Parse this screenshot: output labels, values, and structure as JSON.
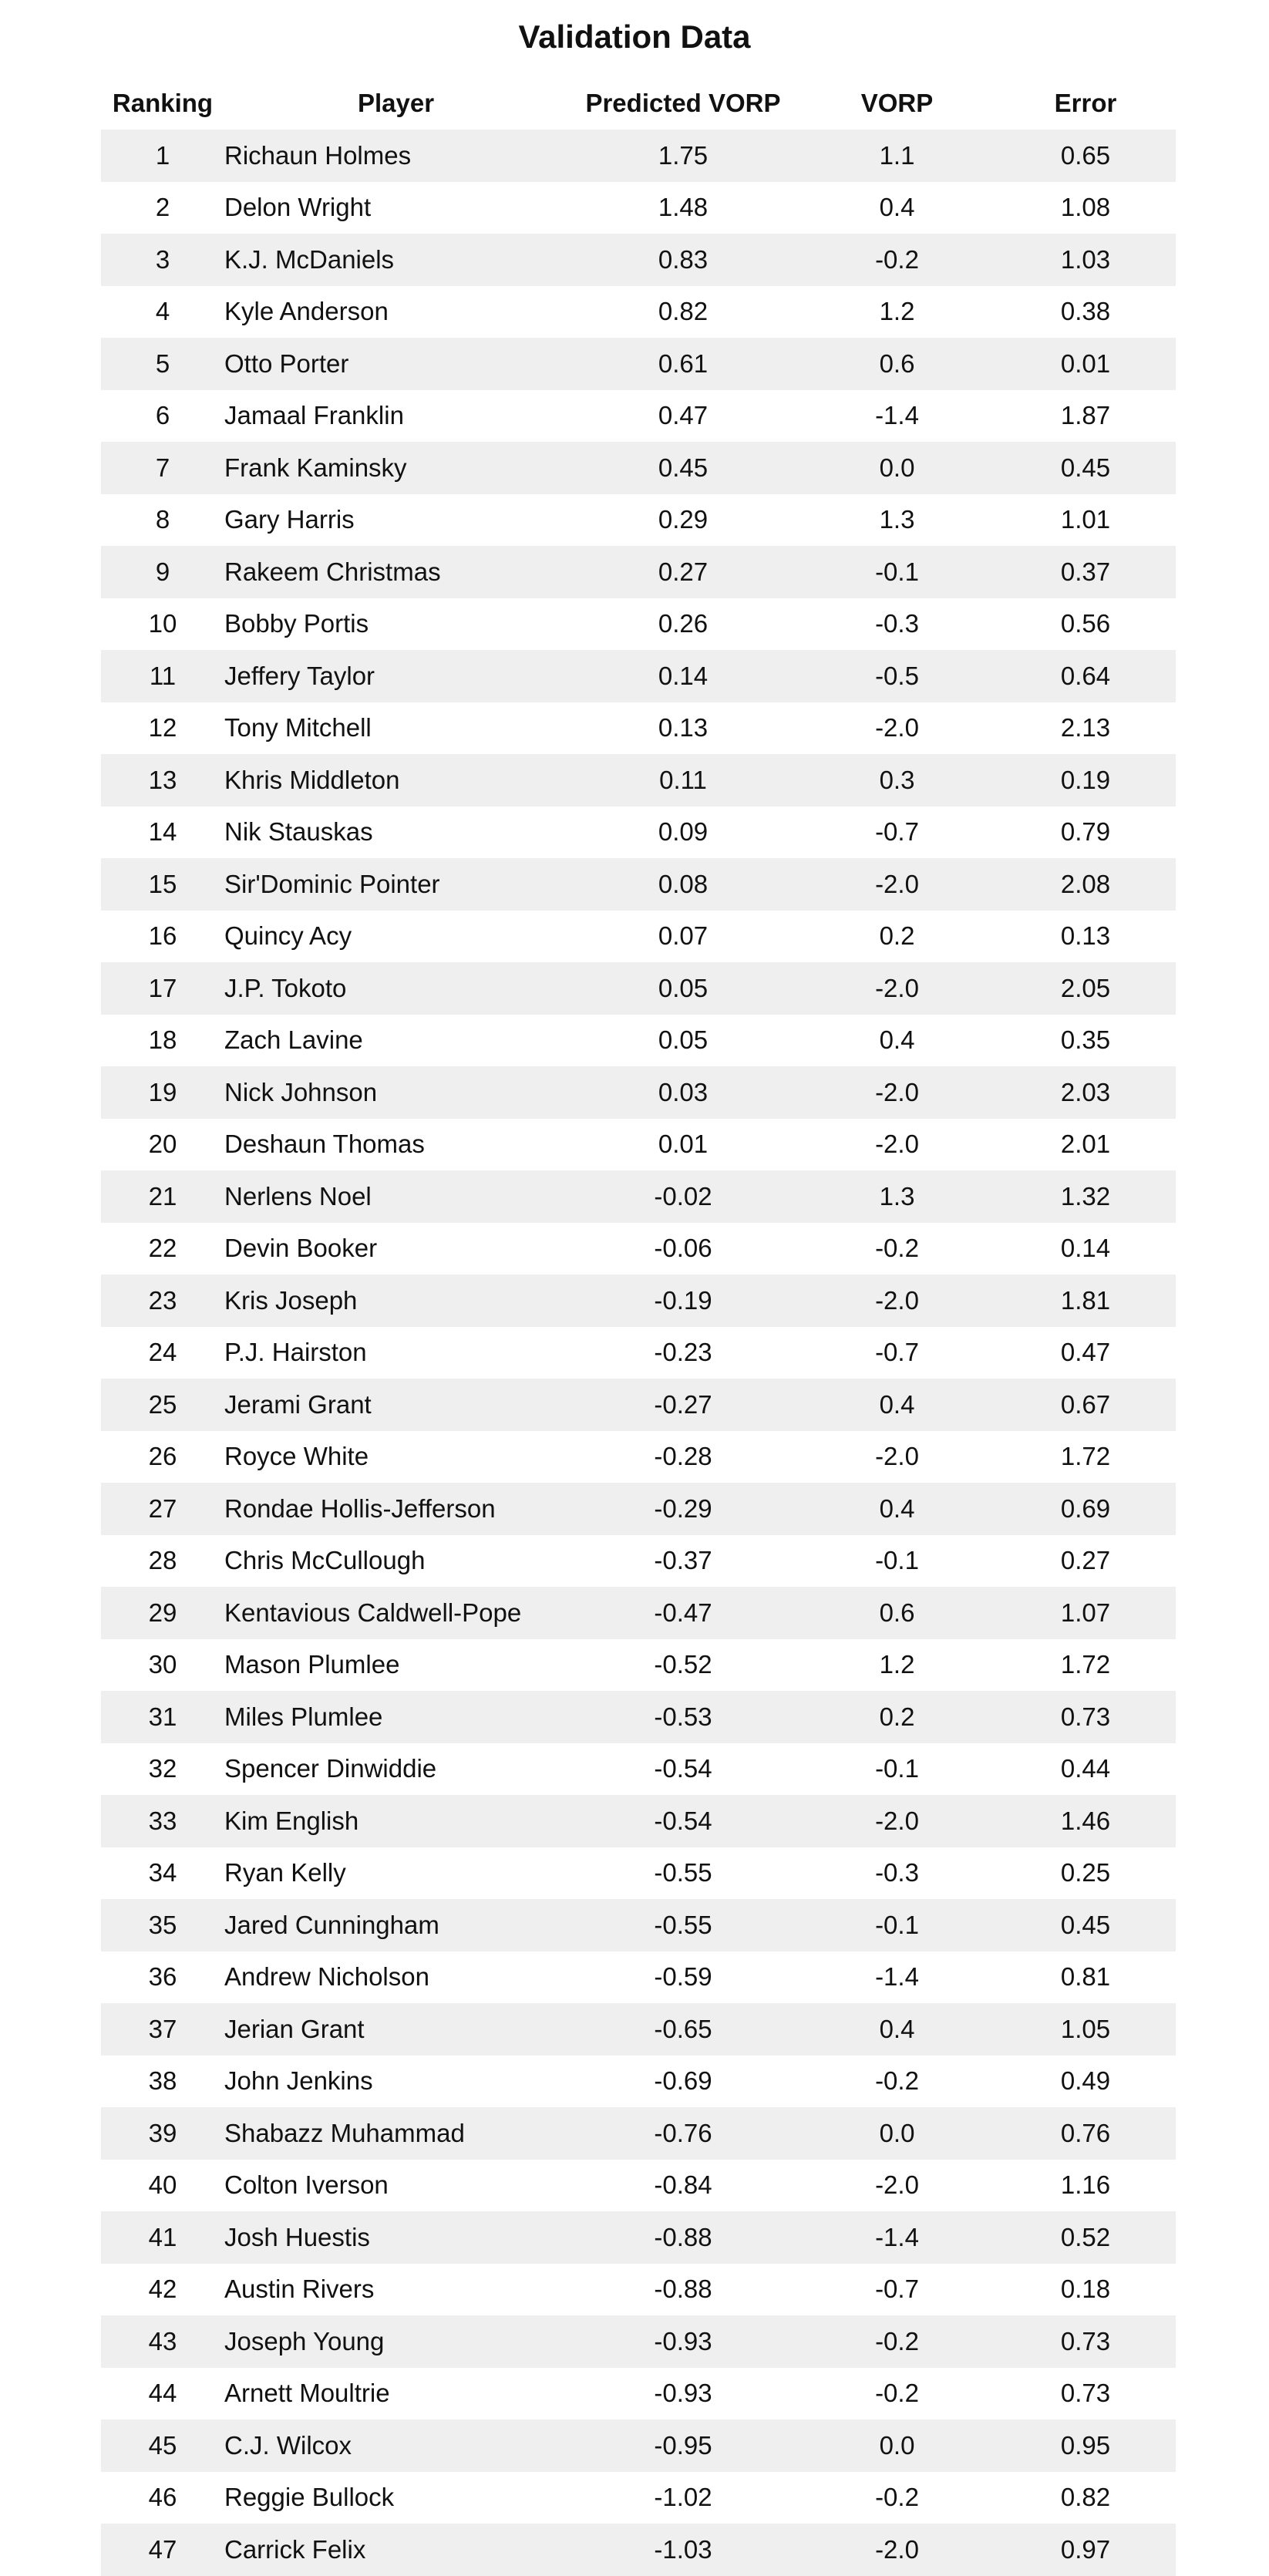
{
  "chart_data": {
    "type": "table",
    "title": "Validation Data",
    "columns": [
      "Ranking",
      "Player",
      "Predicted VORP",
      "VORP",
      "Error"
    ],
    "rows": [
      [
        "1",
        "Richaun Holmes",
        "1.75",
        "1.1",
        "0.65"
      ],
      [
        "2",
        "Delon Wright",
        "1.48",
        "0.4",
        "1.08"
      ],
      [
        "3",
        "K.J. McDaniels",
        "0.83",
        "-0.2",
        "1.03"
      ],
      [
        "4",
        "Kyle Anderson",
        "0.82",
        "1.2",
        "0.38"
      ],
      [
        "5",
        "Otto Porter",
        "0.61",
        "0.6",
        "0.01"
      ],
      [
        "6",
        "Jamaal Franklin",
        "0.47",
        "-1.4",
        "1.87"
      ],
      [
        "7",
        "Frank Kaminsky",
        "0.45",
        "0.0",
        "0.45"
      ],
      [
        "8",
        "Gary Harris",
        "0.29",
        "1.3",
        "1.01"
      ],
      [
        "9",
        "Rakeem Christmas",
        "0.27",
        "-0.1",
        "0.37"
      ],
      [
        "10",
        "Bobby Portis",
        "0.26",
        "-0.3",
        "0.56"
      ],
      [
        "11",
        "Jeffery Taylor",
        "0.14",
        "-0.5",
        "0.64"
      ],
      [
        "12",
        "Tony Mitchell",
        "0.13",
        "-2.0",
        "2.13"
      ],
      [
        "13",
        "Khris Middleton",
        "0.11",
        "0.3",
        "0.19"
      ],
      [
        "14",
        "Nik Stauskas",
        "0.09",
        "-0.7",
        "0.79"
      ],
      [
        "15",
        "Sir'Dominic Pointer",
        "0.08",
        "-2.0",
        "2.08"
      ],
      [
        "16",
        "Quincy Acy",
        "0.07",
        "0.2",
        "0.13"
      ],
      [
        "17",
        "J.P. Tokoto",
        "0.05",
        "-2.0",
        "2.05"
      ],
      [
        "18",
        "Zach Lavine",
        "0.05",
        "0.4",
        "0.35"
      ],
      [
        "19",
        "Nick Johnson",
        "0.03",
        "-2.0",
        "2.03"
      ],
      [
        "20",
        "Deshaun Thomas",
        "0.01",
        "-2.0",
        "2.01"
      ],
      [
        "21",
        "Nerlens Noel",
        "-0.02",
        "1.3",
        "1.32"
      ],
      [
        "22",
        "Devin Booker",
        "-0.06",
        "-0.2",
        "0.14"
      ],
      [
        "23",
        "Kris Joseph",
        "-0.19",
        "-2.0",
        "1.81"
      ],
      [
        "24",
        "P.J. Hairston",
        "-0.23",
        "-0.7",
        "0.47"
      ],
      [
        "25",
        "Jerami Grant",
        "-0.27",
        "0.4",
        "0.67"
      ],
      [
        "26",
        "Royce White",
        "-0.28",
        "-2.0",
        "1.72"
      ],
      [
        "27",
        "Rondae Hollis-Jefferson",
        "-0.29",
        "0.4",
        "0.69"
      ],
      [
        "28",
        "Chris McCullough",
        "-0.37",
        "-0.1",
        "0.27"
      ],
      [
        "29",
        "Kentavious Caldwell-Pope",
        "-0.47",
        "0.6",
        "1.07"
      ],
      [
        "30",
        "Mason Plumlee",
        "-0.52",
        "1.2",
        "1.72"
      ],
      [
        "31",
        "Miles Plumlee",
        "-0.53",
        "0.2",
        "0.73"
      ],
      [
        "32",
        "Spencer Dinwiddie",
        "-0.54",
        "-0.1",
        "0.44"
      ],
      [
        "33",
        "Kim English",
        "-0.54",
        "-2.0",
        "1.46"
      ],
      [
        "34",
        "Ryan Kelly",
        "-0.55",
        "-0.3",
        "0.25"
      ],
      [
        "35",
        "Jared Cunningham",
        "-0.55",
        "-0.1",
        "0.45"
      ],
      [
        "36",
        "Andrew Nicholson",
        "-0.59",
        "-1.4",
        "0.81"
      ],
      [
        "37",
        "Jerian Grant",
        "-0.65",
        "0.4",
        "1.05"
      ],
      [
        "38",
        "John Jenkins",
        "-0.69",
        "-0.2",
        "0.49"
      ],
      [
        "39",
        "Shabazz Muhammad",
        "-0.76",
        "0.0",
        "0.76"
      ],
      [
        "40",
        "Colton Iverson",
        "-0.84",
        "-2.0",
        "1.16"
      ],
      [
        "41",
        "Josh Huestis",
        "-0.88",
        "-1.4",
        "0.52"
      ],
      [
        "42",
        "Austin Rivers",
        "-0.88",
        "-0.7",
        "0.18"
      ],
      [
        "43",
        "Joseph Young",
        "-0.93",
        "-0.2",
        "0.73"
      ],
      [
        "44",
        "Arnett Moultrie",
        "-0.93",
        "-0.2",
        "0.73"
      ],
      [
        "45",
        "C.J. Wilcox",
        "-0.95",
        "0.0",
        "0.95"
      ],
      [
        "46",
        "Reggie Bullock",
        "-1.02",
        "-0.2",
        "0.82"
      ],
      [
        "47",
        "Carrick Felix",
        "-1.03",
        "-2.0",
        "0.97"
      ]
    ],
    "row_shading": "alternating",
    "row_colors": [
      "#efefef",
      "#ffffff"
    ]
  }
}
